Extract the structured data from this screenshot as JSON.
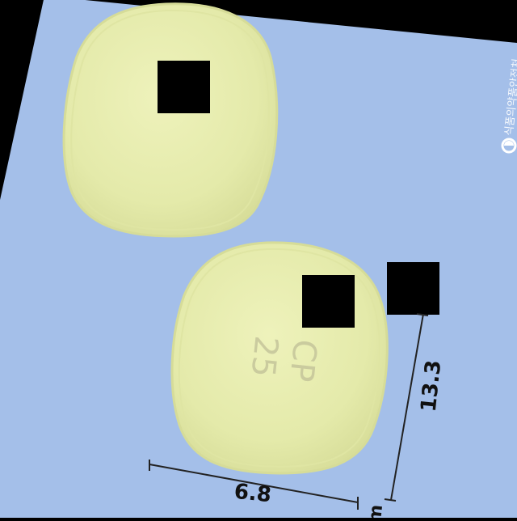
{
  "colors": {
    "background": "#a4bfe9",
    "outside": "#000000",
    "tablet": "#e6ecae",
    "tablet_edge": "#d6dc98",
    "mask": "#000000",
    "ruler": "#222222"
  },
  "tablets": {
    "front": {
      "name": "tablet-front"
    },
    "back": {
      "name": "tablet-back",
      "imprint_line1": "CP",
      "imprint_line2": "25"
    }
  },
  "dimensions": {
    "width": "6.8",
    "height": "13.3",
    "unit_partial": "m"
  },
  "watermark": {
    "text": "식품의약품안전처",
    "logo": "mfds-logo-icon"
  }
}
